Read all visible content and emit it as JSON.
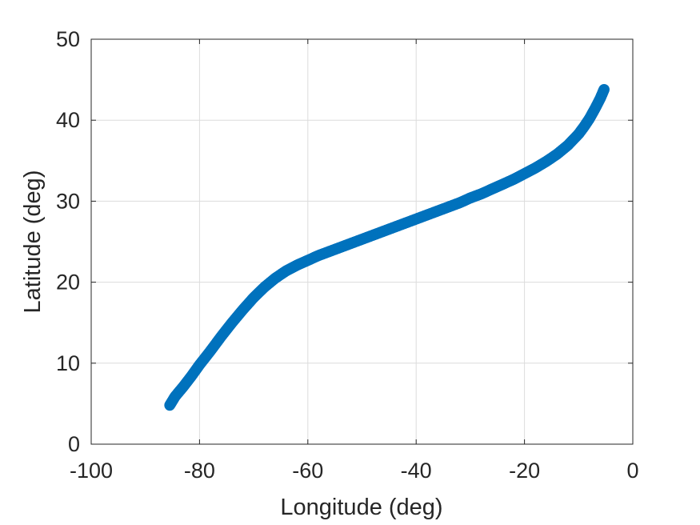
{
  "chart_data": {
    "type": "scatter",
    "title": "",
    "xlabel": "Longitude (deg)",
    "ylabel": "Latitude (deg)",
    "xlim": [
      -100,
      0
    ],
    "ylim": [
      0,
      50
    ],
    "xticks": [
      -100,
      -80,
      -60,
      -40,
      -20,
      0
    ],
    "yticks": [
      0,
      10,
      20,
      30,
      40,
      50
    ],
    "xtick_labels": [
      "-100",
      "-80",
      "-60",
      "-40",
      "-20",
      "0"
    ],
    "ytick_labels": [
      "0",
      "10",
      "20",
      "30",
      "40",
      "50"
    ],
    "grid": true,
    "legend": "none",
    "marker": "circle-open",
    "series": [
      {
        "color": "#0072BD",
        "x": [
          -85.5,
          -84.5,
          -83,
          -81.5,
          -80,
          -78,
          -76,
          -74,
          -72,
          -70,
          -68,
          -66,
          -64,
          -62,
          -60,
          -58,
          -56,
          -54,
          -52,
          -50,
          -48,
          -46,
          -44,
          -42,
          -40,
          -38,
          -36,
          -34,
          -32,
          -30,
          -28,
          -26,
          -24,
          -22,
          -20,
          -18,
          -16,
          -14,
          -12,
          -10,
          -9,
          -8,
          -7,
          -6,
          -5.3
        ],
        "y": [
          4.8,
          5.9,
          7.1,
          8.4,
          9.8,
          11.5,
          13.3,
          15.0,
          16.6,
          18.1,
          19.4,
          20.5,
          21.4,
          22.1,
          22.7,
          23.3,
          23.8,
          24.3,
          24.8,
          25.3,
          25.8,
          26.3,
          26.8,
          27.3,
          27.8,
          28.3,
          28.8,
          29.3,
          29.8,
          30.4,
          30.9,
          31.5,
          32.1,
          32.7,
          33.4,
          34.1,
          34.9,
          35.8,
          36.9,
          38.3,
          39.2,
          40.2,
          41.4,
          42.7,
          43.8
        ]
      }
    ]
  }
}
